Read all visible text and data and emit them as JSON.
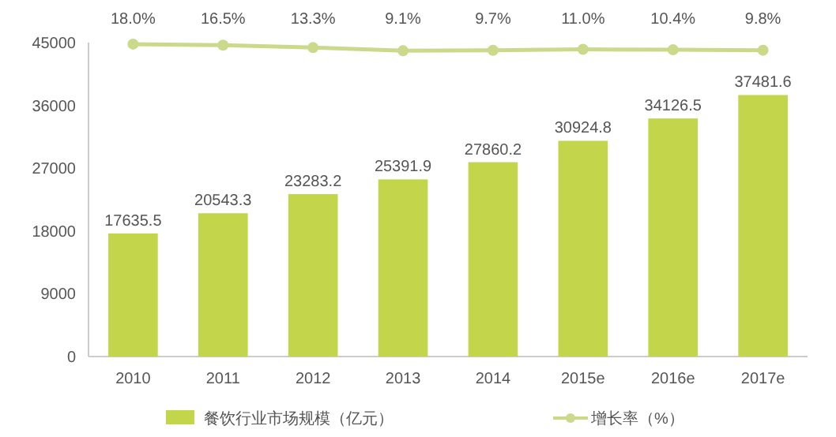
{
  "chart_data": {
    "type": "bar",
    "categories": [
      "2010",
      "2011",
      "2012",
      "2013",
      "2014",
      "2015e",
      "2016e",
      "2017e"
    ],
    "series": [
      {
        "name": "餐饮行业市场规模（亿元）",
        "color": "#c3d64b",
        "values": [
          17635.5,
          20543.3,
          23283.2,
          25391.9,
          27860.2,
          30924.8,
          34126.5,
          37481.6
        ]
      },
      {
        "name": "增长率（%）",
        "type": "line",
        "axis": "y2",
        "color": "#cbd98a",
        "values": [
          18.0,
          16.5,
          13.3,
          9.1,
          9.7,
          11.0,
          10.4,
          9.8
        ],
        "value_labels": [
          "18.0%",
          "16.5%",
          "13.3%",
          "9.1%",
          "9.7%",
          "11.0%",
          "10.4%",
          "9.8%"
        ]
      }
    ],
    "ylim": [
      0,
      45000
    ],
    "yticks": [
      0,
      9000,
      18000,
      27000,
      36000,
      45000
    ],
    "y2lim": [
      -400,
      20
    ],
    "tick_labels": "xy",
    "data_labels": true,
    "grid": false,
    "legend": "bottom",
    "marker": "circle",
    "line_style": "solid"
  }
}
